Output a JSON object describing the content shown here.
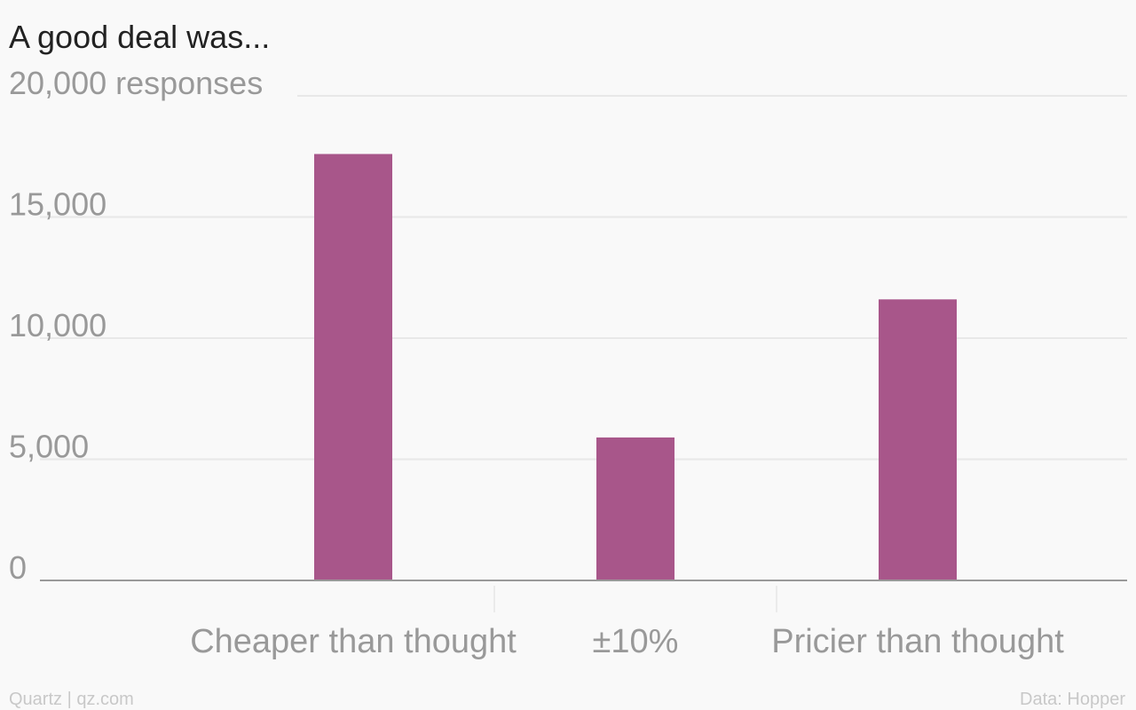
{
  "chart_data": {
    "type": "bar",
    "title": "A good deal was...",
    "categories": [
      "Cheaper than thought",
      "±10%",
      "Pricier than thought"
    ],
    "values": [
      17600,
      5900,
      11600
    ],
    "color": "#a8568a",
    "ylim": [
      0,
      20000
    ],
    "yticks": [
      0,
      {
        "value": 5000,
        "label": "5,000"
      },
      {
        "value": 10000,
        "label": "10,000"
      },
      {
        "value": 15000,
        "label": "15,000"
      },
      {
        "value": 20000,
        "label": "20,000 responses"
      }
    ],
    "grid": true,
    "source": "Data: Hopper",
    "credit": "Quartz | qz.com"
  }
}
